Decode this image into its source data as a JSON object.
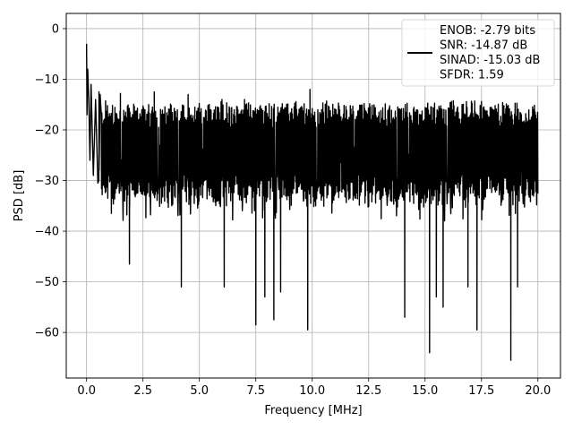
{
  "chart_data": {
    "type": "line",
    "title": "",
    "xlabel": "Frequency [MHz]",
    "ylabel": "PSD [dB]",
    "xlim": [
      -0.9,
      21.0
    ],
    "ylim": [
      -69.0,
      3.0
    ],
    "xticks": [
      0.0,
      2.5,
      5.0,
      7.5,
      10.0,
      12.5,
      15.0,
      17.5,
      20.0
    ],
    "xtick_labels": [
      "0.0",
      "2.5",
      "5.0",
      "7.5",
      "10.0",
      "12.5",
      "15.0",
      "17.5",
      "20.0"
    ],
    "yticks": [
      0,
      -10,
      -20,
      -30,
      -40,
      -50,
      -60
    ],
    "ytick_labels": [
      "0",
      "−10",
      "−20",
      "−30",
      "−40",
      "−50",
      "−60"
    ],
    "grid": true,
    "legend_position": "top-right",
    "series": [
      {
        "color": "#000000",
        "x_range": [
          0.0,
          20.0
        ],
        "points": [
          [
            0.0,
            -3.0
          ],
          [
            0.02,
            -17.0
          ],
          [
            0.05,
            -8.0
          ],
          [
            0.1,
            -14.0
          ],
          [
            0.15,
            -26.0
          ],
          [
            0.2,
            -11.0
          ],
          [
            0.3,
            -29.0
          ],
          [
            0.4,
            -14.0
          ],
          [
            0.5,
            -30.5
          ],
          [
            0.6,
            -13.0
          ]
        ],
        "envelope": {
          "upper_typical": -16.0,
          "lower_typical": -33.0,
          "upper_peaks": [
            [
              0.55,
              -12.5
            ],
            [
              1.5,
              -12.8
            ],
            [
              3.0,
              -12.5
            ],
            [
              4.5,
              -13.0
            ],
            [
              6.0,
              -14.0
            ],
            [
              7.0,
              -14.0
            ],
            [
              9.9,
              -12.0
            ],
            [
              12.3,
              -14.8
            ],
            [
              17.2,
              -14.3
            ],
            [
              17.5,
              -14.4
            ]
          ],
          "lower_dips": [
            [
              1.1,
              -36.5
            ],
            [
              1.9,
              -46.5
            ],
            [
              4.2,
              -51.0
            ],
            [
              6.1,
              -51.0
            ],
            [
              7.5,
              -58.5
            ],
            [
              7.9,
              -53.0
            ],
            [
              8.3,
              -57.5
            ],
            [
              8.6,
              -52.0
            ],
            [
              9.8,
              -59.5
            ],
            [
              14.1,
              -57.0
            ],
            [
              15.2,
              -64.0
            ],
            [
              15.5,
              -53.0
            ],
            [
              15.8,
              -55.0
            ],
            [
              16.9,
              -51.0
            ],
            [
              17.3,
              -59.5
            ],
            [
              18.8,
              -65.5
            ],
            [
              19.1,
              -51.0
            ]
          ]
        }
      }
    ],
    "legend": {
      "lines": [
        "ENOB: -2.79 bits",
        "SNR: -14.87 dB",
        "SINAD: -15.03 dB",
        "SFDR: 1.59"
      ]
    }
  }
}
